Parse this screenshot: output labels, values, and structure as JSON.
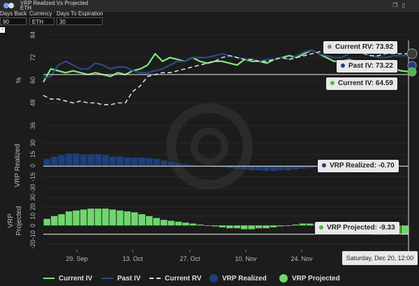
{
  "app": {
    "title": "VRP Realized Vs Projected",
    "subtitle": "ETH",
    "icons": [
      "copy-icon",
      "bookmark-icon"
    ]
  },
  "params": [
    {
      "label": "Days Back",
      "value": "90"
    },
    {
      "label": "Currency",
      "value": "ETH"
    },
    {
      "label": "Days To Expiration",
      "value": "30"
    }
  ],
  "side_button": "›",
  "chart_data": [
    {
      "type": "line",
      "ylabel": "%",
      "yticks": [
        36,
        48,
        60,
        72,
        84
      ],
      "ylim": [
        36,
        84
      ],
      "x_ticks": [
        "29. Sep",
        "13. Oct",
        "27. Oct",
        "10. Nov",
        "24. Nov"
      ],
      "series": [
        {
          "name": "Current IV",
          "color": "#7ee87e",
          "values": [
            59,
            66,
            65,
            64,
            65,
            64,
            63,
            64,
            63,
            62,
            64,
            63,
            65,
            66,
            68,
            74,
            70,
            72,
            71,
            70,
            72,
            70,
            69,
            70,
            70,
            69,
            68,
            71,
            70,
            70,
            69,
            71,
            72,
            73,
            72,
            74,
            76,
            74,
            72,
            70,
            70,
            71,
            70,
            69,
            68,
            66,
            66,
            66,
            65,
            64.59
          ]
        },
        {
          "name": "Past IV",
          "color": "#2b4a8a",
          "values": [
            61,
            62,
            68,
            70,
            68,
            66,
            66,
            69,
            68,
            66,
            67,
            67,
            65,
            64,
            64,
            65,
            66,
            68,
            70,
            70,
            72,
            72,
            72,
            73,
            74,
            73,
            72,
            71,
            71,
            70,
            71,
            71,
            72,
            71,
            73,
            75,
            76,
            74,
            73,
            72,
            72,
            74,
            76,
            74,
            73,
            72,
            72,
            73,
            73,
            73.22
          ]
        },
        {
          "name": "Current RV",
          "color": "#dcdcdc",
          "dashed": true,
          "values": [
            52,
            50,
            50,
            49,
            48,
            49,
            48,
            48,
            47,
            47,
            48,
            48,
            54,
            57,
            62,
            63,
            64,
            64,
            65,
            66,
            67,
            68,
            69,
            70,
            72,
            73,
            72,
            71,
            71,
            70,
            70,
            71,
            72,
            71,
            72,
            73,
            74,
            75,
            76,
            77,
            78,
            76,
            75,
            74,
            73,
            73,
            74,
            74,
            74,
            73.92
          ]
        }
      ]
    },
    {
      "type": "bar",
      "ylabel": "VRP Realized",
      "yticks": [
        -30,
        -15,
        0,
        15,
        30
      ],
      "ylim": [
        -30,
        30
      ],
      "series": [
        {
          "name": "VRP Realized",
          "color": "#1e3f7a",
          "values": [
            9,
            12,
            14,
            16,
            16,
            15,
            15,
            15,
            14,
            12,
            12,
            11,
            11,
            11,
            10,
            9,
            7,
            5,
            3,
            2,
            1,
            0,
            -1,
            -2,
            -2,
            -3,
            -4,
            -5,
            -6,
            -6,
            -7,
            -7,
            -6,
            -6,
            -5,
            -4,
            -3,
            -2,
            -2,
            -2,
            -1,
            -2,
            -3,
            -2,
            -1,
            -1,
            -2,
            -1,
            -1,
            -0.7
          ]
        }
      ]
    },
    {
      "type": "bar",
      "ylabel": "VRP Projected",
      "yticks": [
        -20,
        -10,
        0,
        10,
        20,
        30
      ],
      "ylim": [
        -20,
        30
      ],
      "series": [
        {
          "name": "VRP Projected",
          "color": "#6fd66f",
          "values": [
            7,
            10,
            12,
            15,
            16,
            17,
            18,
            18,
            18,
            17,
            16,
            15,
            14,
            12,
            10,
            8,
            6,
            5,
            4,
            3,
            2,
            1,
            0,
            -1,
            -2,
            -3,
            -3,
            -4,
            -4,
            -3,
            -3,
            -2,
            -1,
            0,
            1,
            2,
            2,
            1,
            0,
            -1,
            -3,
            -5,
            -7,
            -8,
            -9,
            -10,
            -10,
            -9,
            -9,
            -9.33
          ]
        }
      ]
    }
  ],
  "labels": {
    "current_rv": "Current RV: 73.92",
    "past_iv": "Past IV: 73.22",
    "current_iv": "Current IV: 64.59",
    "vrp_realized": "VRP Realized: -0.70",
    "vrp_projected": "VRP Projected: -9.33"
  },
  "date_label": "Saturday, Dec 20, 12:00",
  "legend": [
    {
      "name": "Current IV",
      "type": "line",
      "color": "#7ee87e"
    },
    {
      "name": "Past IV",
      "type": "line",
      "color": "#2b4a8a"
    },
    {
      "name": "Current RV",
      "type": "dashed",
      "color": "#dcdcdc"
    },
    {
      "name": "VRP Realized",
      "type": "dot",
      "color": "#1e3f7a"
    },
    {
      "name": "VRP Projected",
      "type": "dot",
      "color": "#6fd66f"
    }
  ]
}
